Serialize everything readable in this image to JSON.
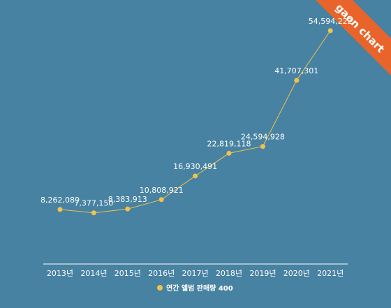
{
  "brand": {
    "ribbon_text": "gaon chart",
    "ribbon_color": "#e8642a"
  },
  "colors": {
    "background": "#4782a2",
    "series": "#f2c14e",
    "axis": "#ffffff",
    "text": "#ffffff"
  },
  "chart_data": {
    "type": "line",
    "title": "",
    "xlabel": "",
    "ylabel": "",
    "grid": false,
    "legend_position": "bottom-center",
    "categories": [
      "2013년",
      "2014년",
      "2015년",
      "2016년",
      "2017년",
      "2018년",
      "2019년",
      "2020년",
      "2021년"
    ],
    "ylim": [
      0,
      60000000
    ],
    "series": [
      {
        "name": "연간 앨범 판매량 400",
        "values": [
          8262089,
          7377150,
          8383913,
          10808921,
          16930491,
          22819118,
          24594928,
          41707301,
          54594222
        ],
        "labels": [
          "8,262,089",
          "7,377,150",
          "8,383,913",
          "10,808,921",
          "16,930,491",
          "22,819,118",
          "24,594,928",
          "41,707,301",
          "54,594,222"
        ]
      }
    ]
  }
}
